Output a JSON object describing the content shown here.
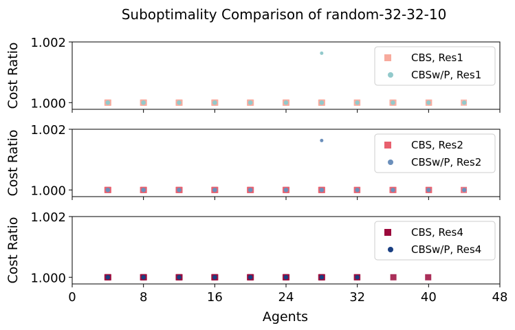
{
  "chart_data": {
    "type": "scatter",
    "title": "Suboptimality Comparison of random-32-32-10",
    "xlabel": "Agents",
    "ylabel": "Cost Ratio",
    "xlim": [
      0,
      48
    ],
    "ylim": [
      0.99978,
      1.002
    ],
    "x_ticks": [
      "0",
      "8",
      "16",
      "24",
      "32",
      "40",
      "48"
    ],
    "y_ticks": [
      "1.000",
      "1.002"
    ],
    "legend_position": "top-right",
    "panels": [
      {
        "series": [
          {
            "name": "CBS, Res1",
            "marker": "square",
            "color": "#f7aa9d",
            "x": [
              4,
              4,
              4,
              8,
              8,
              8,
              12,
              12,
              12,
              16,
              16,
              16,
              20,
              20,
              20,
              24,
              24,
              24,
              28,
              28,
              28,
              32,
              32,
              36,
              36,
              40,
              40,
              44
            ],
            "y": [
              1.0,
              1.0,
              1.0,
              1.0,
              1.0,
              1.0,
              1.0,
              1.0,
              1.0,
              1.0,
              1.0,
              1.0,
              1.0,
              1.0,
              1.0,
              1.0,
              1.0,
              1.0,
              1.0,
              1.0,
              1.0,
              1.0,
              1.0,
              1.0,
              1.0,
              1.0,
              1.0,
              1.0
            ]
          },
          {
            "name": "CBSw/P, Res1",
            "marker": "circle",
            "color": "#92c9cb",
            "x": [
              4,
              4,
              8,
              8,
              12,
              12,
              16,
              16,
              20,
              20,
              24,
              24,
              28,
              28,
              28,
              32,
              36,
              40,
              44
            ],
            "y": [
              1.0,
              1.0,
              1.0,
              1.0,
              1.0,
              1.0,
              1.0,
              1.0,
              1.0,
              1.0,
              1.0,
              1.0,
              1.0,
              1.0,
              1.00163,
              1.0,
              1.0,
              1.0,
              1.0
            ]
          }
        ]
      },
      {
        "series": [
          {
            "name": "CBS, Res2",
            "marker": "square",
            "color": "#e8606e",
            "x": [
              4,
              4,
              4,
              8,
              8,
              8,
              12,
              12,
              12,
              16,
              16,
              16,
              20,
              20,
              20,
              24,
              24,
              24,
              28,
              28,
              28,
              32,
              32,
              36,
              36,
              40,
              40,
              44
            ],
            "y": [
              1.0,
              1.0,
              1.0,
              1.0,
              1.0,
              1.0,
              1.0,
              1.0,
              1.0,
              1.0,
              1.0,
              1.0,
              1.0,
              1.0,
              1.0,
              1.0,
              1.0,
              1.0,
              1.0,
              1.0,
              1.0,
              1.0,
              1.0,
              1.0,
              1.0,
              1.0,
              1.0,
              1.0
            ]
          },
          {
            "name": "CBSw/P, Res2",
            "marker": "circle",
            "color": "#6b8fbb",
            "x": [
              4,
              4,
              8,
              8,
              12,
              12,
              16,
              16,
              20,
              20,
              24,
              24,
              28,
              28,
              28,
              32,
              36,
              40,
              44
            ],
            "y": [
              1.0,
              1.0,
              1.0,
              1.0,
              1.0,
              1.0,
              1.0,
              1.0,
              1.0,
              1.0,
              1.0,
              1.0,
              1.0,
              1.0,
              1.00163,
              1.0,
              1.0,
              1.0,
              1.0
            ]
          }
        ]
      },
      {
        "series": [
          {
            "name": "CBS, Res4",
            "marker": "square",
            "color": "#9b0a3c",
            "x": [
              4,
              4,
              4,
              8,
              8,
              8,
              12,
              12,
              12,
              16,
              16,
              16,
              20,
              20,
              20,
              24,
              24,
              24,
              28,
              28,
              28,
              32,
              32,
              36,
              40
            ],
            "y": [
              1.0,
              1.0,
              1.0,
              1.0,
              1.0,
              1.0,
              1.0,
              1.0,
              1.0,
              1.0,
              1.0,
              1.0,
              1.0,
              1.0,
              1.0,
              1.0,
              1.0,
              1.0,
              1.0,
              1.0,
              1.0,
              1.0,
              1.0,
              1.0,
              1.0
            ]
          },
          {
            "name": "CBSw/P, Res4",
            "marker": "circle",
            "color": "#1a3f82",
            "x": [
              4,
              4,
              8,
              8,
              12,
              12,
              16,
              16,
              20,
              20,
              24,
              24,
              28,
              28,
              32
            ],
            "y": [
              1.0,
              1.0,
              1.0,
              1.0,
              1.0,
              1.0,
              1.0,
              1.0,
              1.0,
              1.0,
              1.0,
              1.0,
              1.0,
              1.0,
              1.0
            ]
          }
        ]
      }
    ]
  }
}
